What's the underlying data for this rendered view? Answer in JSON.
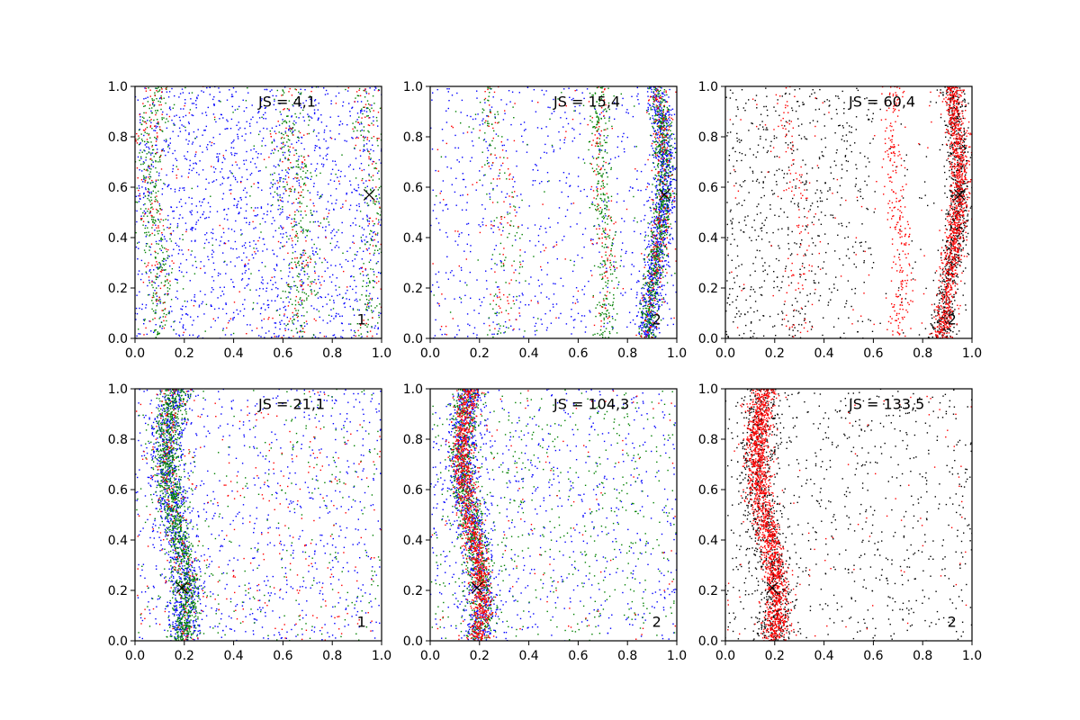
{
  "figure": {
    "background": "#ffffff"
  },
  "colors": {
    "blue": "#0000ff",
    "green": "#008000",
    "red": "#ff0000",
    "black": "#000000"
  },
  "chart_data": [
    {
      "type": "scatter",
      "xlim": [
        0,
        1
      ],
      "ylim": [
        0,
        1
      ],
      "xticks": [
        "0.0",
        "0.2",
        "0.4",
        "0.6",
        "0.8",
        "1.0"
      ],
      "yticks": [
        "0.0",
        "0.2",
        "0.4",
        "0.6",
        "0.8",
        "1.0"
      ],
      "grid": false,
      "annotation": "JS = 4,1",
      "panel_label": "1",
      "marker_x": {
        "x": 0.95,
        "y": 0.57
      },
      "series": [
        {
          "color": "blue",
          "points": 1500,
          "structure": "uniform background"
        },
        {
          "color": "green",
          "points": 900,
          "structure": "faint bands near x≈0.08, 0.65, 0.95"
        },
        {
          "color": "red",
          "points": 400,
          "structure": "faint bands near x≈0.08, 0.65, 0.95"
        }
      ]
    },
    {
      "type": "scatter",
      "xlim": [
        0,
        1
      ],
      "ylim": [
        0,
        1
      ],
      "xticks": [
        "0.0",
        "0.2",
        "0.4",
        "0.6",
        "0.8",
        "1.0"
      ],
      "yticks": [
        "0.0",
        "0.2",
        "0.4",
        "0.6",
        "0.8",
        "1.0"
      ],
      "grid": false,
      "annotation": "JS = 15,4",
      "panel_label": "2",
      "marker_x": {
        "x": 0.95,
        "y": 0.57
      },
      "series": [
        {
          "color": "blue",
          "points": 1600,
          "structure": "dense curved band near x≈0.92"
        },
        {
          "color": "green",
          "points": 1200,
          "structure": "dense band near x≈0.92, secondary near x≈0.72"
        },
        {
          "color": "red",
          "points": 500,
          "structure": "bands near x≈0.28, 0.72, 0.92"
        }
      ]
    },
    {
      "type": "scatter",
      "xlim": [
        0,
        1
      ],
      "ylim": [
        0,
        1
      ],
      "xticks": [
        "0.0",
        "0.2",
        "0.4",
        "0.6",
        "0.8",
        "1.0"
      ],
      "yticks": [
        "0.0",
        "0.2",
        "0.4",
        "0.6",
        "0.8",
        "1.0"
      ],
      "grid": false,
      "annotation": "JS = 60,4",
      "panel_label": "2",
      "marker_x": {
        "x": 0.95,
        "y": 0.57
      },
      "series": [
        {
          "color": "black",
          "points": 1500,
          "structure": "dense band near x≈0.92, sparse scatter at left"
        },
        {
          "color": "red",
          "points": 1500,
          "structure": "dense band near x≈0.92, secondary near x≈0.72"
        }
      ]
    },
    {
      "type": "scatter",
      "xlim": [
        0,
        1
      ],
      "ylim": [
        0,
        1
      ],
      "xticks": [
        "0.0",
        "0.2",
        "0.4",
        "0.6",
        "0.8",
        "1.0"
      ],
      "yticks": [
        "0.0",
        "0.2",
        "0.4",
        "0.6",
        "0.8",
        "1.0"
      ],
      "grid": false,
      "annotation": "JS = 21,1",
      "panel_label": "1",
      "marker_x": {
        "x": 0.19,
        "y": 0.21
      },
      "series": [
        {
          "color": "blue",
          "points": 1700,
          "structure": "dense curved band near x≈0.2 plus background"
        },
        {
          "color": "green",
          "points": 1500,
          "structure": "dense curved band near x≈0.2"
        },
        {
          "color": "red",
          "points": 400,
          "structure": "scatter, band near x≈0.2"
        }
      ]
    },
    {
      "type": "scatter",
      "xlim": [
        0,
        1
      ],
      "ylim": [
        0,
        1
      ],
      "xticks": [
        "0.0",
        "0.2",
        "0.4",
        "0.6",
        "0.8",
        "1.0"
      ],
      "yticks": [
        "0.0",
        "0.2",
        "0.4",
        "0.6",
        "0.8",
        "1.0"
      ],
      "grid": false,
      "annotation": "JS = 104,3",
      "panel_label": "2",
      "marker_x": {
        "x": 0.19,
        "y": 0.21
      },
      "series": [
        {
          "color": "blue",
          "points": 1600,
          "structure": "dense curved band near x≈0.18 plus background"
        },
        {
          "color": "green",
          "points": 1300,
          "structure": "dense curved band near x≈0.16 plus background"
        },
        {
          "color": "red",
          "points": 1200,
          "structure": "dense curved band near x≈0.18"
        }
      ]
    },
    {
      "type": "scatter",
      "xlim": [
        0,
        1
      ],
      "ylim": [
        0,
        1
      ],
      "xticks": [
        "0.0",
        "0.2",
        "0.4",
        "0.6",
        "0.8",
        "1.0"
      ],
      "yticks": [
        "0.0",
        "0.2",
        "0.4",
        "0.6",
        "0.8",
        "1.0"
      ],
      "grid": false,
      "annotation": "JS = 133,5",
      "panel_label": "2",
      "marker_x": {
        "x": 0.19,
        "y": 0.21
      },
      "series": [
        {
          "color": "black",
          "points": 1500,
          "structure": "dense curved band near x≈0.18 plus sparse scatter"
        },
        {
          "color": "red",
          "points": 1700,
          "structure": "dense curved band near x≈0.17"
        }
      ]
    }
  ]
}
